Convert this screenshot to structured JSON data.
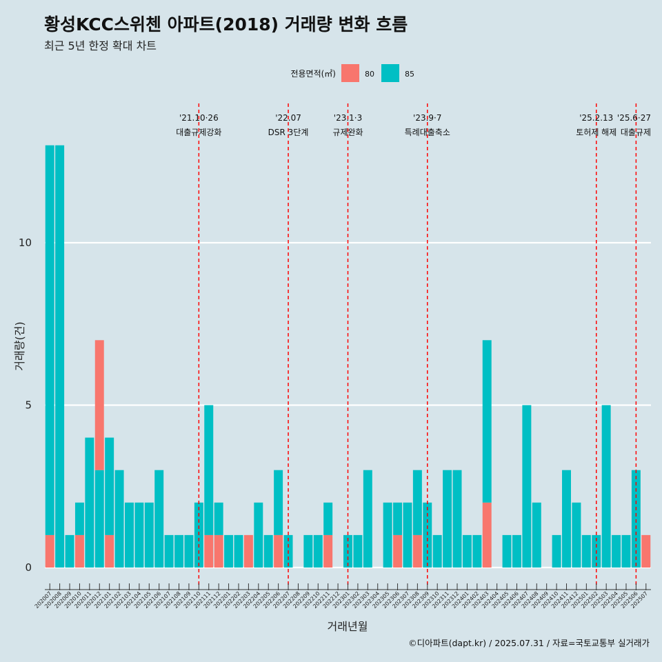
{
  "title": "황성KCC스위첸 아파트(2018) 거래량 변화 흐름",
  "subtitle": "최근 5년 한정 확대 차트",
  "caption": "©디아파트(dapt.kr) / 2025.07.31 / 자료=국토교통부 실거래가",
  "colors": {
    "80": "#f8766d",
    "85": "#00bfc4",
    "vline": "#ff0000",
    "background": "#d6e4ea",
    "grid": "#ffffff"
  },
  "chart_data": {
    "type": "bar",
    "title": "황성KCC스위첸 아파트(2018) 거래량 변화 흐름",
    "xlabel": "거래년월",
    "ylabel": "거래량(건)",
    "ylim": [
      0,
      13.5
    ],
    "yticks": [
      0,
      5,
      10
    ],
    "grid": true,
    "legend": {
      "title": "전용면적(㎡)",
      "placement": "top",
      "entries": [
        "80",
        "85"
      ]
    },
    "months": [
      "202007",
      "202008",
      "202009",
      "202010",
      "202011",
      "202012",
      "202101",
      "202102",
      "202103",
      "202104",
      "202105",
      "202106",
      "202107",
      "202108",
      "202109",
      "202110",
      "202111",
      "202112",
      "202201",
      "202202",
      "202203",
      "202204",
      "202205",
      "202206",
      "202207",
      "202208",
      "202209",
      "202210",
      "202211",
      "202212",
      "202301",
      "202302",
      "202303",
      "202304",
      "202305",
      "202306",
      "202307",
      "202308",
      "202309",
      "202310",
      "202311",
      "202312",
      "202401",
      "202402",
      "202403",
      "202404",
      "202405",
      "202406",
      "202407",
      "202408",
      "202409",
      "202410",
      "202411",
      "202412",
      "202501",
      "202502",
      "202503",
      "202504",
      "202505",
      "202506",
      "202507"
    ],
    "series": [
      {
        "name": "80",
        "values": [
          1,
          0,
          0,
          1,
          0,
          4,
          1,
          0,
          0,
          0,
          0,
          0,
          0,
          0,
          0,
          0,
          1,
          1,
          0,
          0,
          1,
          0,
          0,
          1,
          0,
          0,
          0,
          0,
          1,
          0,
          0,
          0,
          0,
          0,
          0,
          1,
          0,
          1,
          0,
          0,
          0,
          0,
          0,
          0,
          2,
          0,
          0,
          0,
          0,
          0,
          0,
          0,
          0,
          0,
          0,
          0,
          0,
          0,
          0,
          0,
          1
        ]
      },
      {
        "name": "85",
        "values": [
          12,
          13,
          1,
          1,
          4,
          3,
          3,
          3,
          2,
          2,
          2,
          3,
          1,
          1,
          1,
          2,
          4,
          1,
          1,
          1,
          0,
          2,
          1,
          2,
          1,
          0,
          1,
          1,
          1,
          0,
          1,
          1,
          3,
          0,
          2,
          1,
          2,
          2,
          2,
          1,
          3,
          3,
          1,
          1,
          5,
          0,
          1,
          1,
          5,
          2,
          0,
          1,
          3,
          2,
          1,
          1,
          5,
          1,
          1,
          3,
          0
        ]
      }
    ],
    "annotations": [
      {
        "month": "202110",
        "line1": "'21.10·26",
        "line2": "대출규제강화"
      },
      {
        "month": "202207",
        "line1": "'22.07",
        "line2": "DSR 3단계"
      },
      {
        "month": "202301",
        "line1": "'23.1·3",
        "line2": "규제완화"
      },
      {
        "month": "202309",
        "line1": "'23.9·7",
        "line2": "특례대출축소"
      },
      {
        "month": "202502",
        "line1": "'25.2.13",
        "line2": "토허제 해제"
      },
      {
        "month": "202506",
        "line1": "'25.6·27",
        "line2": "대출규제"
      }
    ]
  }
}
